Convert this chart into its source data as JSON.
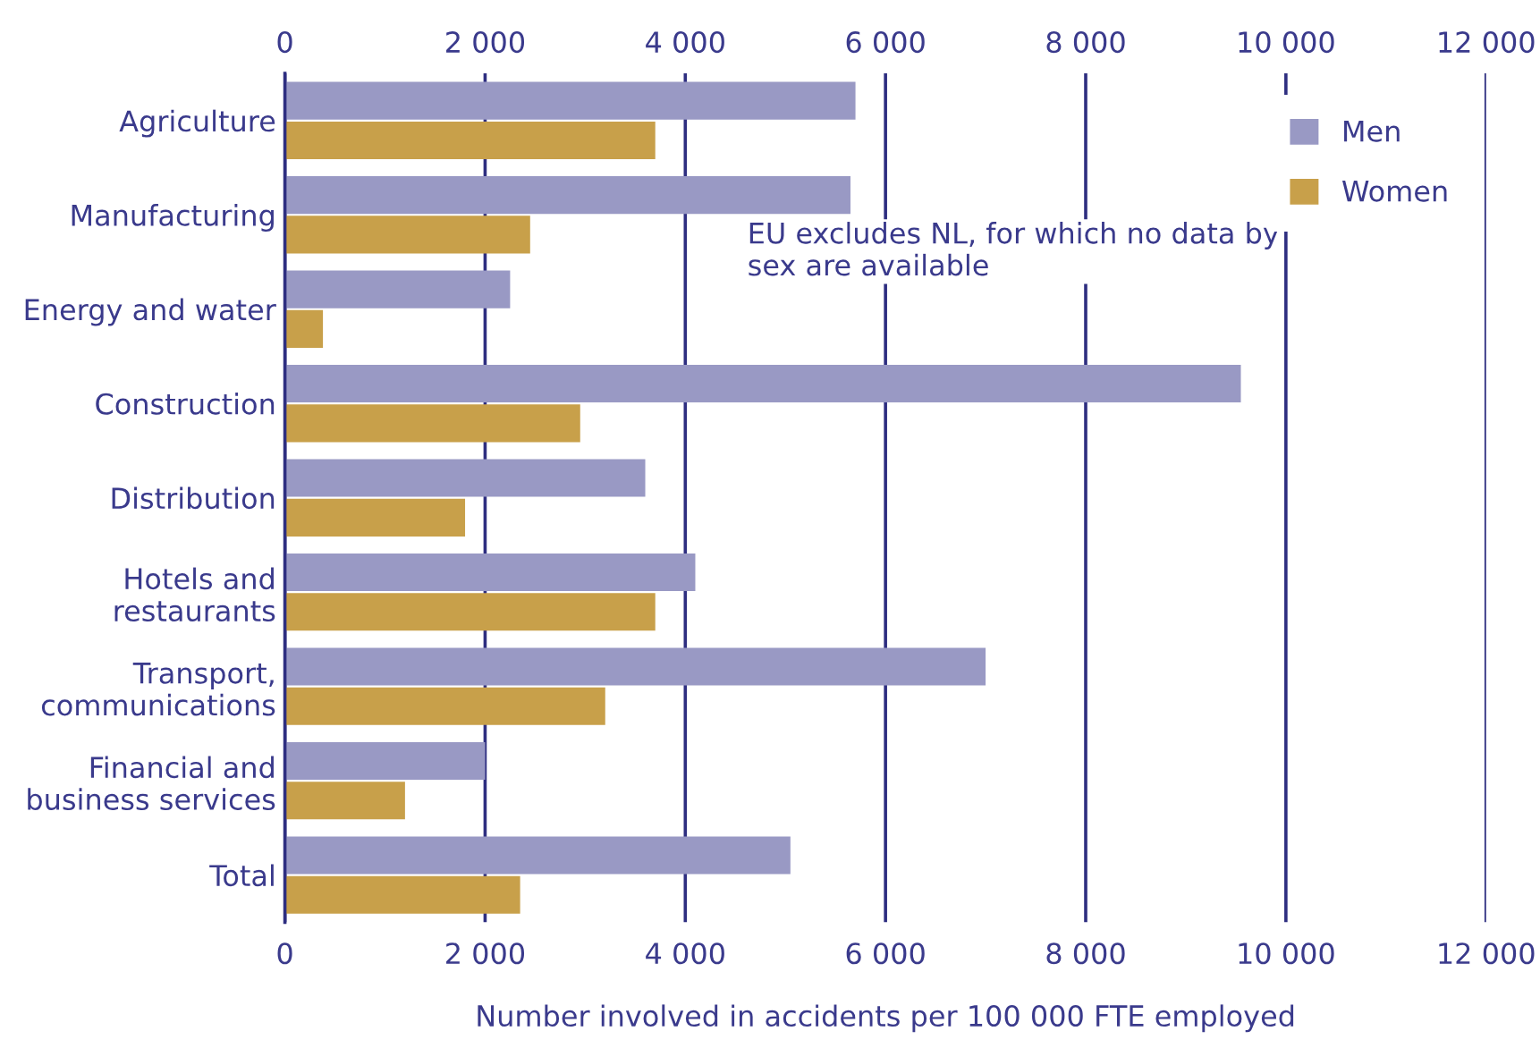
{
  "chart_data": {
    "type": "bar",
    "orientation": "horizontal",
    "categories": [
      "Agriculture",
      "Manufacturing",
      "Energy and water",
      "Construction",
      "Distribution",
      "Hotels and\nrestaurants",
      "Transport,\ncommunications",
      "Financial and\nbusiness services",
      "Total"
    ],
    "series": [
      {
        "name": "Men",
        "color": "#9999c4",
        "values": [
          5700,
          5650,
          2250,
          9550,
          3600,
          4100,
          7000,
          2000,
          5050
        ]
      },
      {
        "name": "Women",
        "color": "#c8a04a",
        "values": [
          3700,
          2450,
          380,
          2950,
          1800,
          3700,
          3200,
          1200,
          2350
        ]
      }
    ],
    "xlim": [
      0,
      12000
    ],
    "xticks": [
      0,
      {
        "value": 2000,
        "label": "2 000"
      },
      {
        "value": 4000,
        "label": "4 000"
      },
      {
        "value": 6000,
        "label": "6 000"
      },
      {
        "value": 8000,
        "label": "8 000"
      },
      {
        "value": 10000,
        "label": "10 000"
      },
      {
        "value": 12000,
        "label": "12 000"
      }
    ],
    "x2lim": [
      0,
      12000
    ],
    "x2ticks": [
      0,
      {
        "value": 2000,
        "label": "2 000"
      },
      {
        "value": 4000,
        "label": "4 000"
      },
      {
        "value": 6000,
        "label": "6 000"
      },
      {
        "value": 8000,
        "label": "8 000"
      },
      {
        "value": 10000,
        "label": "10 000"
      },
      {
        "value": 12000,
        "label": "12 000"
      }
    ],
    "xlabel": "Number involved in accidents per 100 000 FTE employed",
    "annotations": [
      "EU excludes NL, for which no data by\nsex are available"
    ],
    "grid": "x",
    "legend": "top right"
  }
}
